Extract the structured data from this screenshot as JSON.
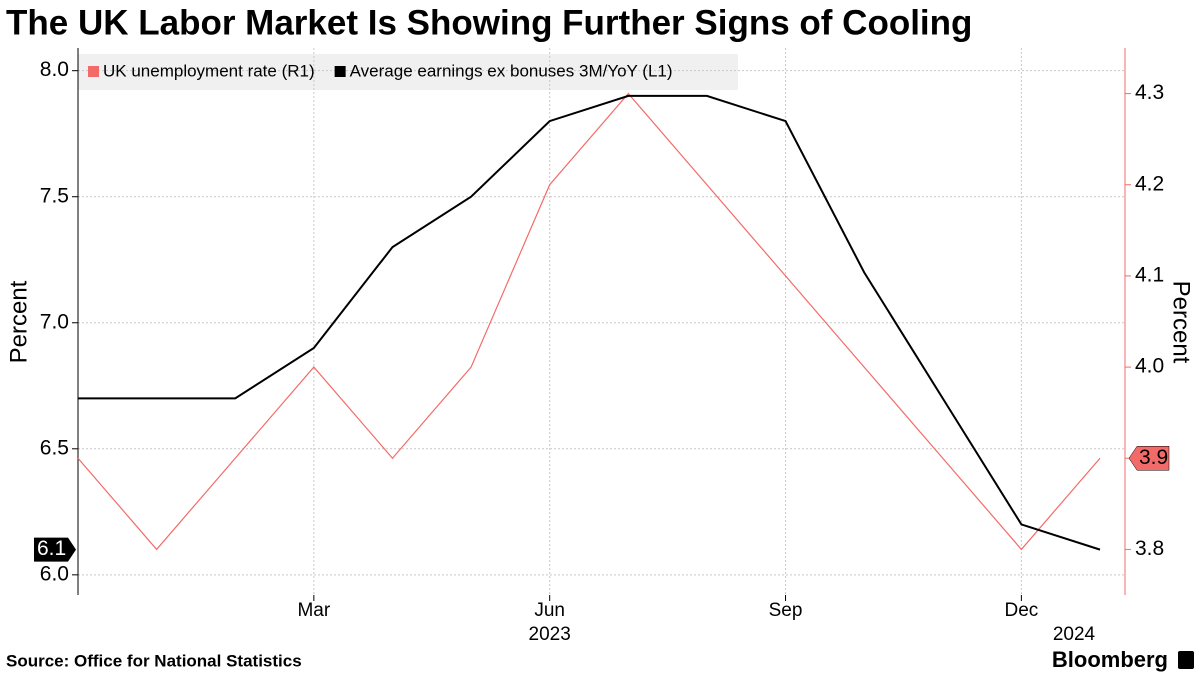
{
  "chart_data": {
    "type": "line",
    "title": "The UK Labor Market Is Showing Further Signs of Cooling",
    "categories": [
      null,
      null,
      null,
      "Mar",
      null,
      null,
      "Jun",
      null,
      null,
      "Sep",
      null,
      null,
      "Dec",
      null
    ],
    "category_years": [
      null,
      null,
      null,
      null,
      null,
      null,
      "2023",
      null,
      null,
      null,
      null,
      null,
      null,
      "2024"
    ],
    "series": [
      {
        "name": "UK unemployment rate (R1)",
        "color": "#f26b68",
        "axis": "y2",
        "values": [
          3.9,
          3.8,
          3.9,
          4.0,
          3.9,
          4.0,
          4.2,
          4.3,
          4.2,
          4.1,
          4.0,
          3.9,
          3.8,
          3.9
        ]
      },
      {
        "name": "Average earnings ex bonuses 3M/YoY (L1)",
        "color": "#000000",
        "values": [
          6.7,
          6.7,
          6.7,
          6.9,
          7.3,
          7.5,
          7.8,
          7.9,
          7.9,
          7.8,
          7.2,
          6.7,
          6.2,
          6.1
        ]
      }
    ],
    "ylabel": "Percent",
    "y2label": "Percent",
    "ylim": [
      5.92,
      8.09
    ],
    "yticks": [
      {
        "value": 6,
        "label": "6.0"
      },
      6.5,
      {
        "value": 7,
        "label": "7.0"
      },
      7.5,
      {
        "value": 8,
        "label": "8.0"
      }
    ],
    "y2lim": [
      3.75,
      4.35
    ],
    "y2ticks": [
      3.8,
      3.9,
      {
        "value": 4,
        "label": "4.0"
      },
      4.1,
      4.2,
      4.3
    ],
    "grid": true,
    "legend": "top-left",
    "source": "Source: Office for National Statistics",
    "brand": "Bloomberg"
  }
}
